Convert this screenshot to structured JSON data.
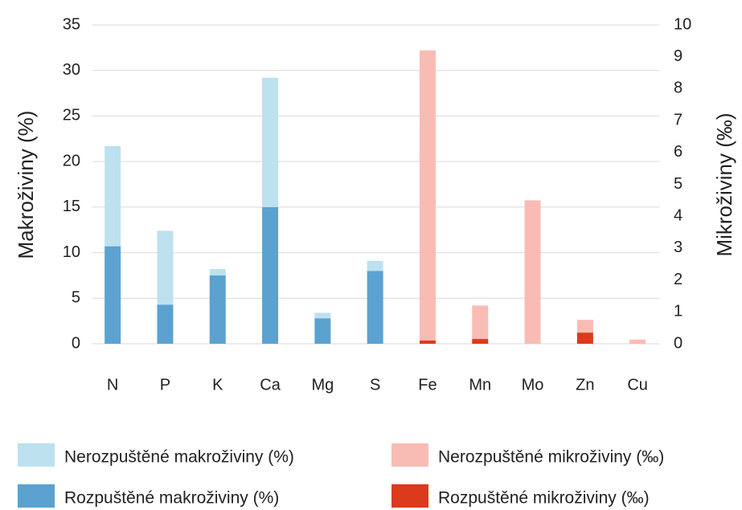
{
  "chart_data": {
    "type": "bar",
    "stacked": true,
    "categories": [
      "N",
      "P",
      "K",
      "Ca",
      "Mg",
      "S",
      "Fe",
      "Mn",
      "Mo",
      "Zn",
      "Cu"
    ],
    "series": [
      {
        "name": "Nerozpuštěné makroživiny (%)",
        "color": "#bde1ee",
        "values": [
          11.0,
          8.1,
          0.7,
          14.2,
          0.6,
          1.1,
          null,
          null,
          null,
          null,
          null
        ]
      },
      {
        "name": "Rozpuštěné makroživiny (%)",
        "color": "#5ba2d0",
        "values": [
          10.7,
          4.3,
          7.5,
          15.0,
          2.8,
          8.0,
          null,
          null,
          null,
          null,
          null
        ]
      },
      {
        "name": "Nerozpuštěné mikroživiny (‰)",
        "color": "#f9bcb5",
        "axis": "y2",
        "values": [
          null,
          null,
          null,
          null,
          null,
          null,
          9.1,
          1.05,
          4.5,
          0.4,
          0.13
        ]
      },
      {
        "name": "Rozpuštěné mikroživiny (‰)",
        "color": "#dc3a1c",
        "axis": "y2",
        "values": [
          null,
          null,
          null,
          null,
          null,
          null,
          0.1,
          0.15,
          0,
          0.35,
          0
        ]
      }
    ],
    "ylabel": "Makroživiny (%)",
    "y2label": "Mikroživiny (‰)",
    "ylim": [
      0,
      35
    ],
    "yticks": [
      0,
      5,
      10,
      15,
      20,
      25,
      30,
      35
    ],
    "y2lim": [
      0,
      10
    ],
    "y2ticks": [
      0,
      1,
      2,
      3,
      4,
      5,
      6,
      7,
      8,
      9,
      10
    ],
    "grid": true
  }
}
